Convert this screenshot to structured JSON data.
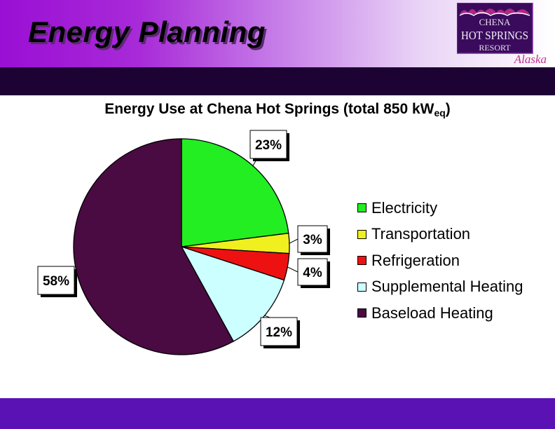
{
  "slide": {
    "title": "Energy Planning",
    "colors": {
      "top_gradient_start": "#9a0fd4",
      "dark_bar": "#1c0333",
      "bottom_bar": "#5a12b4"
    }
  },
  "logo": {
    "line1": "CHENA",
    "line2": "HOT SPRINGS",
    "line3": "RESORT",
    "line4": "Alaska"
  },
  "chart_data": {
    "type": "pie",
    "title": "Energy Use at Chena Hot Springs (total 850 kW",
    "title_subscript": "eq",
    "title_suffix": ")",
    "legend_position": "right",
    "series": [
      {
        "name": "Electricity",
        "value": 23,
        "label": "23%",
        "color": "#22ee22"
      },
      {
        "name": "Transportation",
        "value": 3,
        "label": "3%",
        "color": "#f0f01e"
      },
      {
        "name": "Refrigeration",
        "value": 4,
        "label": "4%",
        "color": "#ee1111"
      },
      {
        "name": "Supplemental Heating",
        "value": 12,
        "label": "12%",
        "color": "#ccffff"
      },
      {
        "name": "Baseload Heating",
        "value": 58,
        "label": "58%",
        "color": "#4a0a42"
      }
    ]
  }
}
